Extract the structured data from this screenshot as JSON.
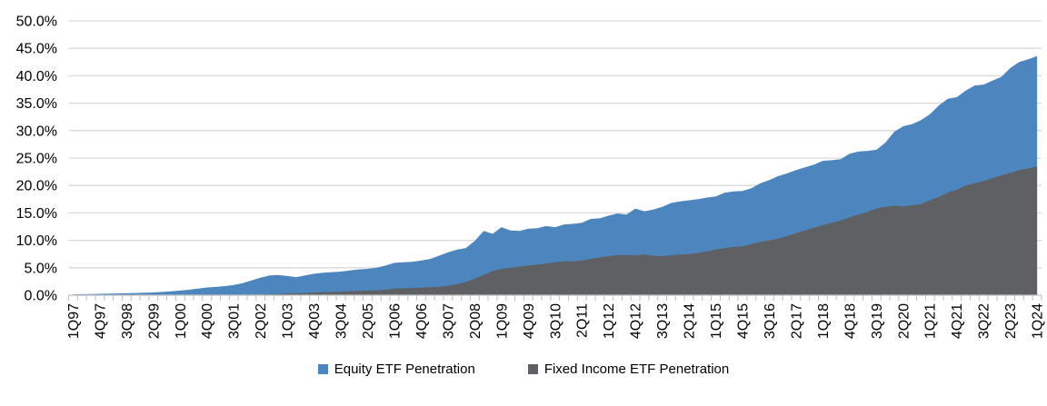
{
  "chart_data": {
    "type": "area",
    "title": "",
    "xlabel": "",
    "ylabel": "",
    "ylim": [
      0,
      50
    ],
    "y_tick_step": 5,
    "y_tick_labels": [
      "0.0%",
      "5.0%",
      "10.0%",
      "15.0%",
      "20.0%",
      "25.0%",
      "30.0%",
      "35.0%",
      "40.0%",
      "45.0%",
      "50.0%"
    ],
    "x_label_every": 3,
    "grid": true,
    "legend_position": "bottom",
    "overlap": true,
    "categories": [
      "1Q97",
      "2Q97",
      "3Q97",
      "4Q97",
      "1Q98",
      "2Q98",
      "3Q98",
      "4Q98",
      "1Q99",
      "2Q99",
      "3Q99",
      "4Q99",
      "1Q00",
      "2Q00",
      "3Q00",
      "4Q00",
      "1Q01",
      "2Q01",
      "3Q01",
      "4Q01",
      "1Q02",
      "2Q02",
      "3Q02",
      "4Q02",
      "1Q03",
      "2Q03",
      "3Q03",
      "4Q03",
      "1Q04",
      "2Q04",
      "3Q04",
      "4Q04",
      "1Q05",
      "2Q05",
      "3Q05",
      "4Q05",
      "1Q06",
      "2Q06",
      "3Q06",
      "4Q06",
      "1Q07",
      "2Q07",
      "3Q07",
      "4Q07",
      "1Q08",
      "2Q08",
      "3Q08",
      "4Q08",
      "1Q09",
      "2Q09",
      "3Q09",
      "4Q09",
      "1Q10",
      "2Q10",
      "3Q10",
      "4Q10",
      "1Q11",
      "2Q11",
      "3Q11",
      "4Q11",
      "1Q12",
      "2Q12",
      "3Q12",
      "4Q12",
      "1Q13",
      "2Q13",
      "3Q13",
      "4Q13",
      "1Q14",
      "2Q14",
      "3Q14",
      "4Q14",
      "1Q15",
      "2Q15",
      "3Q15",
      "4Q15",
      "1Q16",
      "2Q16",
      "3Q16",
      "4Q16",
      "1Q17",
      "2Q17",
      "3Q17",
      "4Q17",
      "1Q18",
      "2Q18",
      "3Q18",
      "4Q18",
      "1Q19",
      "2Q19",
      "3Q19",
      "4Q19",
      "1Q20",
      "2Q20",
      "3Q20",
      "4Q20",
      "1Q21",
      "2Q21",
      "3Q21",
      "4Q21",
      "1Q22",
      "2Q22",
      "3Q22",
      "4Q22",
      "1Q23",
      "2Q23",
      "3Q23",
      "4Q23",
      "1Q24"
    ],
    "series": [
      {
        "name": "Equity ETF Penetration",
        "color": "#4D86BE",
        "values": [
          0.15,
          0.18,
          0.2,
          0.25,
          0.3,
          0.32,
          0.35,
          0.4,
          0.45,
          0.5,
          0.6,
          0.7,
          0.85,
          1.0,
          1.2,
          1.4,
          1.5,
          1.65,
          1.85,
          2.2,
          2.7,
          3.2,
          3.6,
          3.7,
          3.5,
          3.3,
          3.6,
          3.9,
          4.1,
          4.2,
          4.3,
          4.5,
          4.7,
          4.8,
          5.0,
          5.4,
          5.9,
          6.0,
          6.1,
          6.3,
          6.6,
          7.2,
          7.8,
          8.3,
          8.6,
          9.9,
          11.7,
          11.2,
          12.4,
          11.8,
          11.7,
          12.1,
          12.2,
          12.6,
          12.4,
          12.9,
          13.0,
          13.2,
          13.9,
          14.0,
          14.5,
          14.9,
          14.7,
          15.8,
          15.3,
          15.6,
          16.1,
          16.8,
          17.1,
          17.3,
          17.5,
          17.8,
          18.0,
          18.7,
          18.9,
          19.0,
          19.5,
          20.4,
          21.0,
          21.7,
          22.2,
          22.8,
          23.3,
          23.8,
          24.5,
          24.6,
          24.8,
          25.8,
          26.2,
          26.3,
          26.5,
          27.8,
          29.8,
          30.8,
          31.2,
          31.9,
          33.0,
          34.6,
          35.8,
          36.1,
          37.3,
          38.2,
          38.4,
          39.1,
          39.8,
          41.4,
          42.5,
          43.0,
          43.6
        ]
      },
      {
        "name": "Fixed Income ETF Penetration",
        "color": "#5E6063",
        "values": [
          0,
          0,
          0,
          0,
          0,
          0,
          0,
          0,
          0,
          0,
          0,
          0,
          0,
          0,
          0,
          0,
          0,
          0,
          0,
          0,
          0,
          0.1,
          0.15,
          0.2,
          0.3,
          0.35,
          0.4,
          0.5,
          0.55,
          0.6,
          0.65,
          0.7,
          0.8,
          0.85,
          0.9,
          1.0,
          1.2,
          1.25,
          1.3,
          1.35,
          1.45,
          1.55,
          1.7,
          2.0,
          2.4,
          3.0,
          3.7,
          4.4,
          4.8,
          5.0,
          5.2,
          5.4,
          5.6,
          5.8,
          6.0,
          6.2,
          6.2,
          6.3,
          6.6,
          6.9,
          7.1,
          7.3,
          7.3,
          7.3,
          7.4,
          7.2,
          7.1,
          7.3,
          7.4,
          7.5,
          7.7,
          8.0,
          8.3,
          8.6,
          8.8,
          8.9,
          9.3,
          9.7,
          10.0,
          10.3,
          10.8,
          11.3,
          11.8,
          12.3,
          12.8,
          13.2,
          13.6,
          14.2,
          14.7,
          15.2,
          15.8,
          16.1,
          16.3,
          16.2,
          16.4,
          16.6,
          17.3,
          17.9,
          18.7,
          19.2,
          20.0,
          20.4,
          20.8,
          21.3,
          21.8,
          22.3,
          22.8,
          23.1,
          23.5
        ]
      }
    ],
    "colors": {
      "gridline": "#D9D9D9",
      "axis_line": "#BFBFBF",
      "tick": "#BFBFBF",
      "label_text": "#000000",
      "background": "#FFFFFF"
    }
  },
  "legend": {
    "items": [
      {
        "label": "Equity ETF Penetration"
      },
      {
        "label": "Fixed Income ETF Penetration"
      }
    ]
  }
}
